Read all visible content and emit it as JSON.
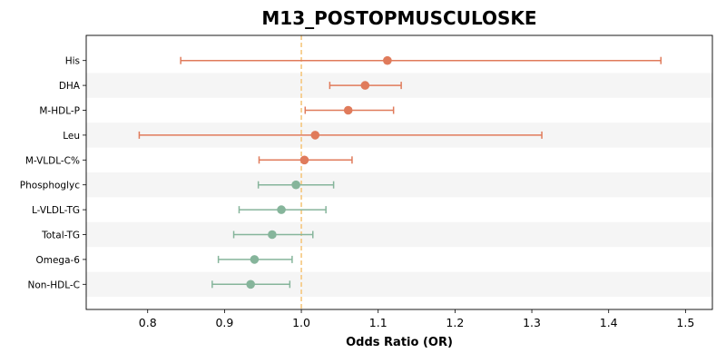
{
  "chart_data": {
    "type": "forest",
    "title": "M13_POSTOPMUSCULOSKE",
    "xlabel": "Odds Ratio (OR)",
    "xlim": [
      0.72,
      1.535
    ],
    "xticks": [
      0.8,
      0.9,
      1.0,
      1.1,
      1.2,
      1.3,
      1.4,
      1.5
    ],
    "xtick_labels": [
      "0.8",
      "0.9",
      "1.0",
      "1.1",
      "1.2",
      "1.3",
      "1.4",
      "1.5"
    ],
    "reference_line": 1.0,
    "grid": false,
    "colors": {
      "positive": "#e07b5b",
      "negative": "#86b59b",
      "reference": "#f5c77e",
      "band": "#f5f5f5"
    },
    "rows": [
      {
        "label": "His",
        "or": 1.112,
        "lower": 0.843,
        "upper": 1.468,
        "direction": "positive"
      },
      {
        "label": "DHA",
        "or": 1.083,
        "lower": 1.037,
        "upper": 1.13,
        "direction": "positive"
      },
      {
        "label": "M-HDL-P",
        "or": 1.061,
        "lower": 1.005,
        "upper": 1.12,
        "direction": "positive"
      },
      {
        "label": "Leu",
        "or": 1.018,
        "lower": 0.789,
        "upper": 1.313,
        "direction": "positive"
      },
      {
        "label": "M-VLDL-C%",
        "or": 1.004,
        "lower": 0.945,
        "upper": 1.066,
        "direction": "positive"
      },
      {
        "label": "Phosphoglyc",
        "or": 0.993,
        "lower": 0.944,
        "upper": 1.042,
        "direction": "negative"
      },
      {
        "label": "L-VLDL-TG",
        "or": 0.974,
        "lower": 0.919,
        "upper": 1.032,
        "direction": "negative"
      },
      {
        "label": "Total-TG",
        "or": 0.962,
        "lower": 0.912,
        "upper": 1.015,
        "direction": "negative"
      },
      {
        "label": "Omega-6",
        "or": 0.939,
        "lower": 0.892,
        "upper": 0.988,
        "direction": "negative"
      },
      {
        "label": "Non-HDL-C",
        "or": 0.934,
        "lower": 0.884,
        "upper": 0.985,
        "direction": "negative"
      }
    ]
  }
}
